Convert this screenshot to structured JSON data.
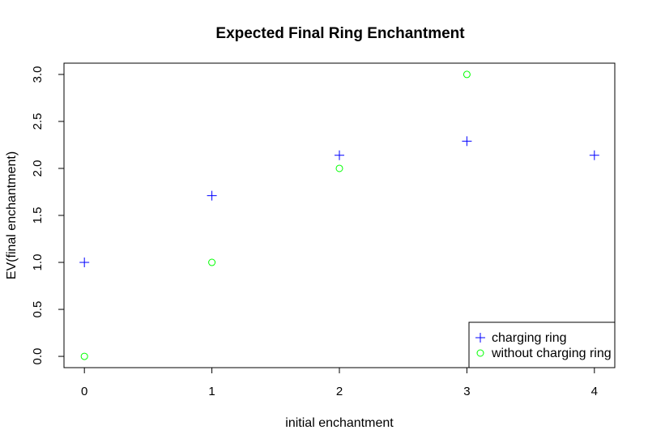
{
  "chart_data": {
    "type": "scatter",
    "title": "Expected Final Ring Enchantment",
    "xlabel": "initial enchantment",
    "ylabel": "EV(final enchantment)",
    "xlim": [
      -0.16,
      4.16
    ],
    "ylim": [
      -0.12,
      3.12
    ],
    "xticks": [
      0,
      1,
      2,
      3,
      4
    ],
    "yticks": [
      0.0,
      0.5,
      1.0,
      1.5,
      2.0,
      2.5,
      3.0
    ],
    "xtick_labels": [
      "0",
      "1",
      "2",
      "3",
      "4"
    ],
    "ytick_labels": [
      "0.0",
      "0.5",
      "1.0",
      "1.5",
      "2.0",
      "2.5",
      "3.0"
    ],
    "grid": false,
    "legend_position": "bottom-right",
    "series": [
      {
        "name": "charging ring",
        "marker": "plus",
        "color": "#0000ff",
        "x": [
          0,
          1,
          2,
          3,
          4
        ],
        "y": [
          1.0,
          1.71,
          2.14,
          2.29,
          2.14
        ]
      },
      {
        "name": "without charging ring",
        "marker": "circle",
        "color": "#00ff00",
        "x": [
          0,
          1,
          2,
          3
        ],
        "y": [
          0.0,
          1.0,
          2.0,
          3.0
        ]
      }
    ]
  }
}
